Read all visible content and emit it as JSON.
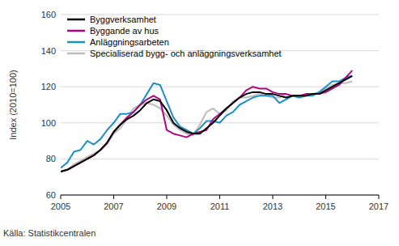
{
  "chart_data": {
    "type": "line",
    "ylabel": "Index (2010=100)",
    "source": "Källa: Statistikcentralen",
    "x": [
      2005,
      2005.25,
      2005.5,
      2005.75,
      2006,
      2006.25,
      2006.5,
      2006.75,
      2007,
      2007.25,
      2007.5,
      2007.75,
      2008,
      2008.25,
      2008.5,
      2008.75,
      2009,
      2009.25,
      2009.5,
      2009.75,
      2010,
      2010.25,
      2010.5,
      2010.75,
      2011,
      2011.25,
      2011.5,
      2011.75,
      2012,
      2012.25,
      2012.5,
      2012.75,
      2013,
      2013.25,
      2013.5,
      2013.75,
      2014,
      2014.25,
      2014.5,
      2014.75,
      2015,
      2015.25,
      2015.5,
      2015.75,
      2016
    ],
    "series": [
      {
        "name": "Byggverksamhet",
        "color": "#000000",
        "values": [
          73,
          74,
          76,
          78,
          80,
          82,
          85,
          89,
          95,
          99,
          102,
          104,
          107,
          111,
          113,
          112,
          107,
          100,
          97,
          95,
          94,
          94,
          97,
          100,
          104,
          108,
          111,
          114,
          116,
          117,
          117,
          116,
          116,
          115,
          114,
          115,
          115,
          115,
          116,
          116,
          118,
          120,
          122,
          124,
          126
        ]
      },
      {
        "name": "Byggande av hus",
        "color": "#b0057f",
        "values": [
          73,
          74,
          76,
          78,
          80,
          82,
          85,
          89,
          95,
          99,
          103,
          106,
          110,
          113,
          115,
          113,
          96,
          94,
          93,
          92,
          94,
          95,
          96,
          102,
          105,
          108,
          111,
          114,
          118,
          120,
          119,
          119,
          117,
          116,
          116,
          115,
          115,
          116,
          116,
          116,
          117,
          119,
          121,
          125,
          129
        ]
      },
      {
        "name": "Anläggningsarbeten",
        "color": "#1b8fc6",
        "values": [
          75,
          78,
          84,
          85,
          90,
          88,
          91,
          96,
          100,
          105,
          105,
          106,
          110,
          116,
          122,
          121,
          112,
          103,
          98,
          96,
          94,
          97,
          101,
          101,
          100,
          104,
          106,
          110,
          112,
          114,
          115,
          115,
          115,
          111,
          113,
          115,
          114,
          115,
          115,
          117,
          120,
          123,
          123,
          125,
          126
        ]
      },
      {
        "name": "Specialiserad bygg- och anläggningsverksamhet",
        "color": "#bdbdbd",
        "values": [
          73,
          74,
          77,
          79,
          81,
          83,
          85,
          88,
          94,
          97,
          102,
          108,
          110,
          111,
          110,
          108,
          104,
          99,
          96,
          94,
          93,
          99,
          106,
          108,
          105,
          107,
          112,
          114,
          114,
          115,
          116,
          115,
          114,
          114,
          116,
          115,
          114,
          115,
          116,
          117,
          119,
          121,
          122,
          122,
          123
        ]
      }
    ],
    "xlim": [
      2005,
      2017
    ],
    "xticks": [
      2005,
      2007,
      2009,
      2011,
      2013,
      2015,
      2017
    ],
    "ylim": [
      60,
      160
    ],
    "yticks": [
      60,
      80,
      100,
      120,
      140,
      160
    ],
    "grid": true,
    "legend": "upper left"
  }
}
